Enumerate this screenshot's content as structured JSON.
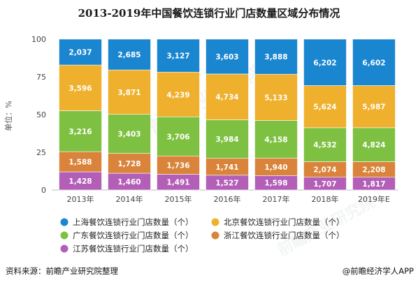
{
  "chart_data": {
    "type": "bar",
    "stacked": "percent",
    "title": "2013-2019年中国餐饮连锁行业门店数量区域分布情况",
    "ylabel": "单位：%",
    "ylim": [
      0,
      100
    ],
    "yticks": [
      0,
      25,
      50,
      75,
      100
    ],
    "categories": [
      "2013年",
      "2014年",
      "2015年",
      "2016年",
      "2017年",
      "2018年",
      "2019年E"
    ],
    "series": [
      {
        "name": "江苏餐饮连锁行业门店数量（个）",
        "color": "#b35fb8",
        "values": [
          1428,
          1460,
          1491,
          1527,
          1598,
          1707,
          1817
        ]
      },
      {
        "name": "浙江餐饮连锁行业门店数量（个）",
        "color": "#d9843a",
        "values": [
          1588,
          1728,
          1736,
          1741,
          1940,
          2074,
          2208
        ]
      },
      {
        "name": "广东餐饮连锁行业门店数量（个）",
        "color": "#7ec142",
        "values": [
          3216,
          3403,
          3706,
          3984,
          4158,
          4532,
          4824
        ]
      },
      {
        "name": "北京餐饮连锁行业门店数量（个）",
        "color": "#efb02e",
        "values": [
          3596,
          3871,
          4239,
          4734,
          5133,
          5624,
          5987
        ]
      },
      {
        "name": "上海餐饮连锁行业门店数量（个）",
        "color": "#1b86d0",
        "values": [
          2037,
          2685,
          3127,
          3603,
          3888,
          6202,
          6602
        ]
      }
    ],
    "legend_order": [
      4,
      3,
      2,
      1,
      0
    ],
    "legend_position": "bottom",
    "grid": false
  },
  "footer": {
    "source": "资料来源：前瞻产业研究院整理",
    "brand": "@前瞻经济学人APP"
  },
  "watermark": "前瞻产业研究院"
}
